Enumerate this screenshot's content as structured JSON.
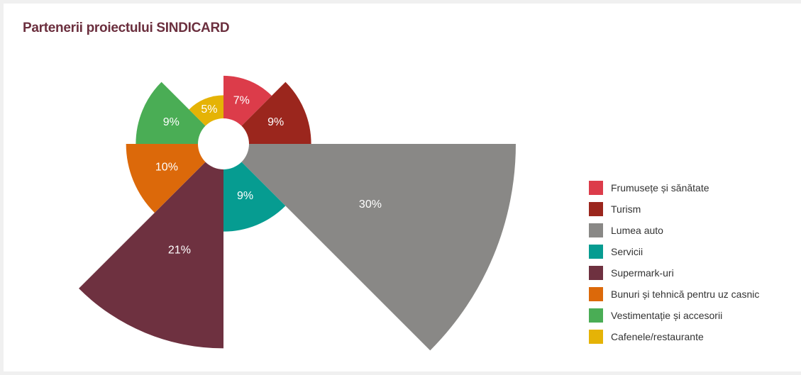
{
  "title": "Partenerii proiectului SINDICARD",
  "chart_data": {
    "type": "pie",
    "variant": "polar-area",
    "slices": [
      {
        "label": "Frumusețe și sănătate",
        "value": 7,
        "display": "7%",
        "color": "#dc3c4a"
      },
      {
        "label": "Turism",
        "value": 9,
        "display": "9%",
        "color": "#9b261d"
      },
      {
        "label": "Lumea auto",
        "value": 30,
        "display": "30%",
        "color": "#898886"
      },
      {
        "label": "Servicii",
        "value": 9,
        "display": "9%",
        "color": "#069c91"
      },
      {
        "label": "Supermark-uri",
        "value": 21,
        "display": "21%",
        "color": "#6e3140"
      },
      {
        "label": "Bunuri și tehnică pentru uz casnic",
        "value": 10,
        "display": "10%",
        "color": "#dc690a"
      },
      {
        "label": "Vestimentație și accesorii",
        "value": 9,
        "display": "9%",
        "color": "#4aad55"
      },
      {
        "label": "Cafenele/restaurante",
        "value": 5,
        "display": "5%",
        "color": "#e5b306"
      }
    ],
    "legend_position": "right"
  }
}
